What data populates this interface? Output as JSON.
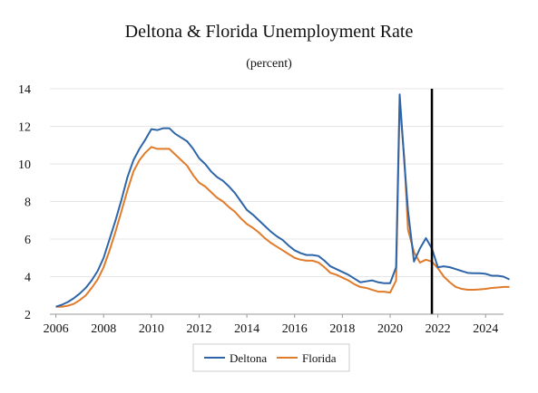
{
  "title": "Deltona & Florida Unemployment Rate",
  "subtitle": "(percent)",
  "colors": {
    "deltona": "#2e65a8",
    "florida": "#e07b2a",
    "marker": "#000000",
    "grid": "#e6e6e6"
  },
  "chart_data": {
    "type": "line",
    "title": "Deltona & Florida Unemployment Rate",
    "subtitle": "(percent)",
    "xlabel": "",
    "ylabel": "",
    "xlim": [
      2005.75,
      2024.75
    ],
    "ylim": [
      2,
      14
    ],
    "x_ticks": [
      2006,
      2008,
      2010,
      2012,
      2014,
      2016,
      2018,
      2020,
      2022,
      2024
    ],
    "y_ticks": [
      2,
      4,
      6,
      8,
      10,
      12,
      14
    ],
    "grid": "horizontal",
    "legend": "bottom-center",
    "vertical_marker_x": 2021.75,
    "series": [
      {
        "name": "Deltona",
        "color": "#2e65a8",
        "points": [
          [
            2006.0,
            2.4
          ],
          [
            2006.25,
            2.5
          ],
          [
            2006.5,
            2.65
          ],
          [
            2006.75,
            2.85
          ],
          [
            2007.0,
            3.1
          ],
          [
            2007.25,
            3.4
          ],
          [
            2007.5,
            3.8
          ],
          [
            2007.75,
            4.3
          ],
          [
            2008.0,
            5.0
          ],
          [
            2008.25,
            6.0
          ],
          [
            2008.5,
            7.0
          ],
          [
            2008.75,
            8.1
          ],
          [
            2009.0,
            9.3
          ],
          [
            2009.25,
            10.2
          ],
          [
            2009.5,
            10.8
          ],
          [
            2009.75,
            11.3
          ],
          [
            2010.0,
            11.85
          ],
          [
            2010.25,
            11.8
          ],
          [
            2010.5,
            11.9
          ],
          [
            2010.75,
            11.9
          ],
          [
            2011.0,
            11.6
          ],
          [
            2011.25,
            11.4
          ],
          [
            2011.5,
            11.2
          ],
          [
            2011.75,
            10.8
          ],
          [
            2012.0,
            10.3
          ],
          [
            2012.25,
            10.0
          ],
          [
            2012.5,
            9.6
          ],
          [
            2012.75,
            9.3
          ],
          [
            2013.0,
            9.1
          ],
          [
            2013.25,
            8.8
          ],
          [
            2013.5,
            8.45
          ],
          [
            2013.75,
            8.0
          ],
          [
            2014.0,
            7.55
          ],
          [
            2014.25,
            7.3
          ],
          [
            2014.5,
            7.0
          ],
          [
            2014.75,
            6.7
          ],
          [
            2015.0,
            6.4
          ],
          [
            2015.25,
            6.15
          ],
          [
            2015.5,
            5.95
          ],
          [
            2015.75,
            5.65
          ],
          [
            2016.0,
            5.4
          ],
          [
            2016.25,
            5.25
          ],
          [
            2016.5,
            5.15
          ],
          [
            2016.75,
            5.15
          ],
          [
            2017.0,
            5.1
          ],
          [
            2017.25,
            4.85
          ],
          [
            2017.5,
            4.55
          ],
          [
            2017.75,
            4.4
          ],
          [
            2018.0,
            4.25
          ],
          [
            2018.25,
            4.1
          ],
          [
            2018.5,
            3.9
          ],
          [
            2018.75,
            3.7
          ],
          [
            2019.0,
            3.75
          ],
          [
            2019.25,
            3.8
          ],
          [
            2019.5,
            3.7
          ],
          [
            2019.75,
            3.65
          ],
          [
            2020.0,
            3.65
          ],
          [
            2020.25,
            4.5
          ],
          [
            2020.4,
            13.7
          ],
          [
            2020.6,
            10.0
          ],
          [
            2020.75,
            7.5
          ],
          [
            2021.0,
            4.8
          ],
          [
            2021.25,
            5.5
          ],
          [
            2021.5,
            6.05
          ],
          [
            2021.75,
            5.5
          ],
          [
            2022.0,
            4.5
          ],
          [
            2022.25,
            4.55
          ],
          [
            2022.5,
            4.5
          ],
          [
            2022.75,
            4.4
          ],
          [
            2023.0,
            4.3
          ],
          [
            2023.25,
            4.2
          ],
          [
            2023.5,
            4.18
          ],
          [
            2023.75,
            4.18
          ],
          [
            2024.0,
            4.15
          ],
          [
            2024.25,
            4.05
          ],
          [
            2024.5,
            4.05
          ],
          [
            2024.75,
            4.0
          ],
          [
            2025.0,
            3.85
          ]
        ]
      },
      {
        "name": "Florida",
        "color": "#e07b2a",
        "points": [
          [
            2006.0,
            2.4
          ],
          [
            2006.25,
            2.4
          ],
          [
            2006.5,
            2.45
          ],
          [
            2006.75,
            2.55
          ],
          [
            2007.0,
            2.75
          ],
          [
            2007.25,
            3.0
          ],
          [
            2007.5,
            3.4
          ],
          [
            2007.75,
            3.85
          ],
          [
            2008.0,
            4.5
          ],
          [
            2008.25,
            5.4
          ],
          [
            2008.5,
            6.4
          ],
          [
            2008.75,
            7.5
          ],
          [
            2009.0,
            8.6
          ],
          [
            2009.25,
            9.6
          ],
          [
            2009.5,
            10.2
          ],
          [
            2009.75,
            10.6
          ],
          [
            2010.0,
            10.9
          ],
          [
            2010.25,
            10.8
          ],
          [
            2010.5,
            10.8
          ],
          [
            2010.75,
            10.8
          ],
          [
            2011.0,
            10.5
          ],
          [
            2011.25,
            10.2
          ],
          [
            2011.5,
            9.9
          ],
          [
            2011.75,
            9.4
          ],
          [
            2012.0,
            9.0
          ],
          [
            2012.25,
            8.8
          ],
          [
            2012.5,
            8.5
          ],
          [
            2012.75,
            8.2
          ],
          [
            2013.0,
            8.0
          ],
          [
            2013.25,
            7.7
          ],
          [
            2013.5,
            7.45
          ],
          [
            2013.75,
            7.1
          ],
          [
            2014.0,
            6.8
          ],
          [
            2014.25,
            6.6
          ],
          [
            2014.5,
            6.35
          ],
          [
            2014.75,
            6.05
          ],
          [
            2015.0,
            5.8
          ],
          [
            2015.25,
            5.6
          ],
          [
            2015.5,
            5.4
          ],
          [
            2015.75,
            5.2
          ],
          [
            2016.0,
            5.0
          ],
          [
            2016.25,
            4.9
          ],
          [
            2016.5,
            4.85
          ],
          [
            2016.75,
            4.85
          ],
          [
            2017.0,
            4.75
          ],
          [
            2017.25,
            4.5
          ],
          [
            2017.5,
            4.2
          ],
          [
            2017.75,
            4.1
          ],
          [
            2018.0,
            3.95
          ],
          [
            2018.25,
            3.8
          ],
          [
            2018.5,
            3.6
          ],
          [
            2018.75,
            3.45
          ],
          [
            2019.0,
            3.4
          ],
          [
            2019.25,
            3.3
          ],
          [
            2019.5,
            3.2
          ],
          [
            2019.75,
            3.2
          ],
          [
            2020.0,
            3.15
          ],
          [
            2020.25,
            3.8
          ],
          [
            2020.4,
            13.3
          ],
          [
            2020.6,
            10.2
          ],
          [
            2020.75,
            6.5
          ],
          [
            2021.0,
            5.3
          ],
          [
            2021.25,
            4.75
          ],
          [
            2021.5,
            4.9
          ],
          [
            2021.75,
            4.8
          ],
          [
            2022.0,
            4.45
          ],
          [
            2022.25,
            4.0
          ],
          [
            2022.5,
            3.7
          ],
          [
            2022.75,
            3.45
          ],
          [
            2023.0,
            3.35
          ],
          [
            2023.25,
            3.3
          ],
          [
            2023.5,
            3.3
          ],
          [
            2023.75,
            3.32
          ],
          [
            2024.0,
            3.35
          ],
          [
            2024.25,
            3.4
          ],
          [
            2024.5,
            3.42
          ],
          [
            2024.75,
            3.45
          ],
          [
            2025.0,
            3.45
          ]
        ]
      }
    ]
  }
}
